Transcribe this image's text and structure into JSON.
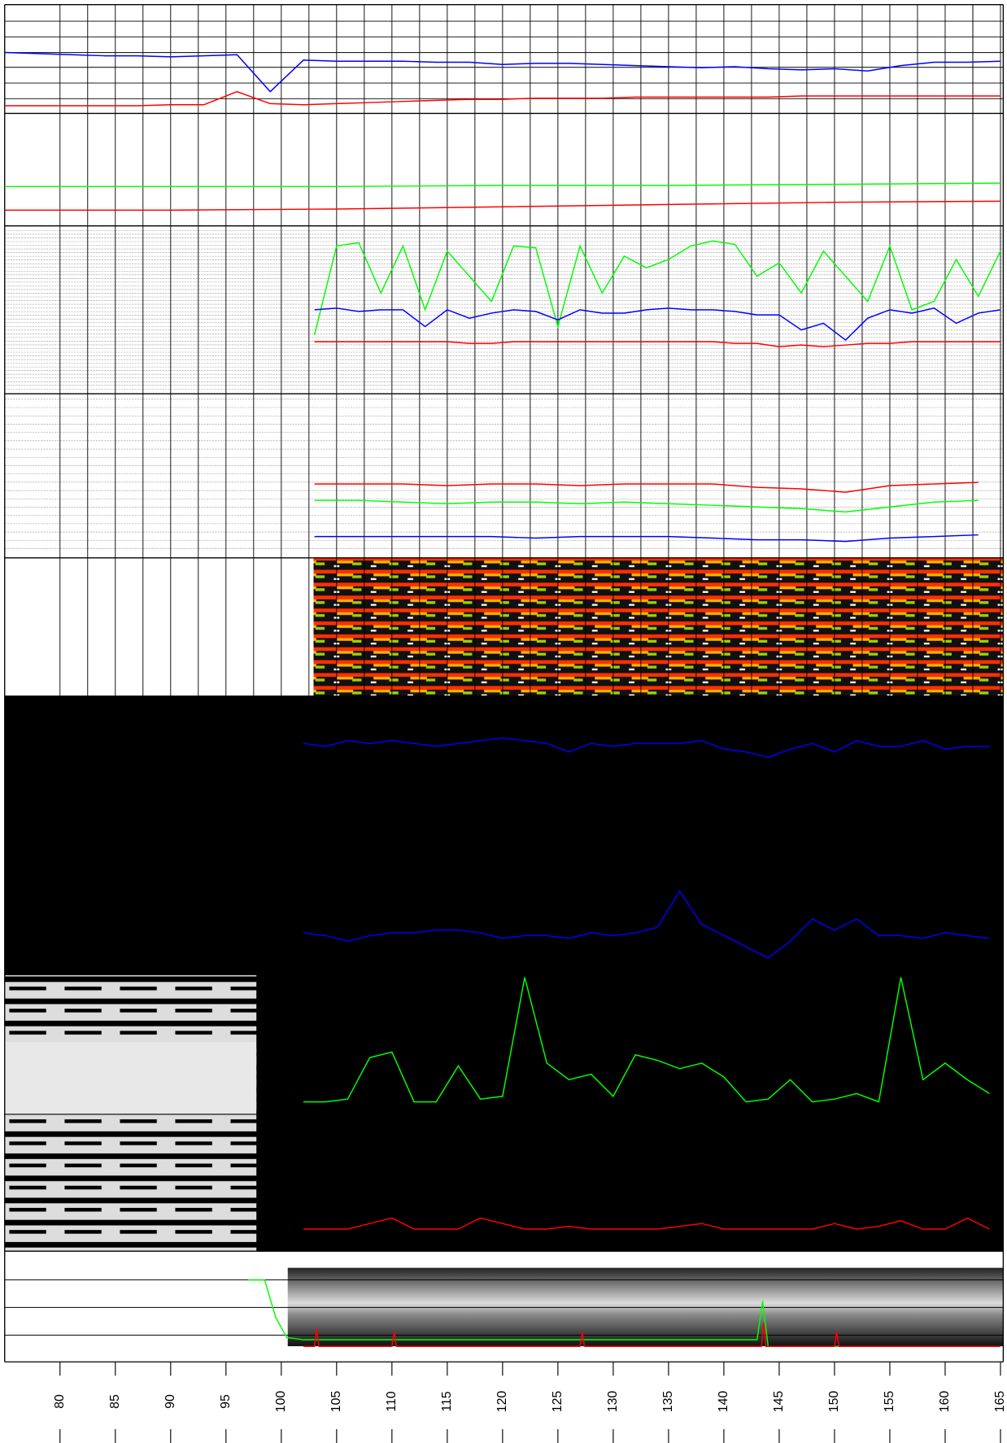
{
  "chart_data": {
    "type": "well-log",
    "xlim": [
      75,
      165.25
    ],
    "xticks": [
      80,
      85,
      90,
      95,
      100,
      105,
      110,
      115,
      120,
      125,
      130,
      135,
      140,
      145,
      150,
      155,
      160,
      165
    ],
    "grid": true,
    "tracks": [
      {
        "ylim": [
          0,
          100
        ],
        "x": [
          75,
          78,
          81,
          84,
          87,
          90,
          93,
          96,
          99,
          102,
          105,
          108,
          111,
          114,
          117,
          120,
          123,
          126,
          129,
          132,
          135,
          138,
          141,
          144,
          147,
          150,
          153,
          156,
          159,
          162,
          165
        ],
        "series": [
          {
            "color": "#0000ff",
            "values": [
              56,
              55,
              54,
              53,
              53,
              52,
              53,
              54,
              20,
              49,
              48,
              48,
              48,
              47,
              47,
              45,
              46,
              46,
              45,
              44,
              43,
              42,
              43,
              41,
              40,
              41,
              39,
              44,
              47,
              47,
              48
            ]
          },
          {
            "color": "#ff0000",
            "values": [
              7,
              7,
              7,
              7,
              7,
              8,
              8,
              20,
              9,
              8,
              9,
              10,
              11,
              12,
              13,
              13,
              14,
              14,
              14,
              15,
              15,
              15,
              15,
              15,
              16,
              16,
              16,
              16,
              16,
              16,
              16
            ]
          }
        ]
      },
      {
        "ylim": [
          0,
          100
        ],
        "x": [
          75,
          90,
          105,
          120,
          135,
          150,
          165
        ],
        "series": [
          {
            "color": "#00ff00",
            "values": [
              35,
              35,
              35,
              36,
              36,
              37,
              38
            ]
          },
          {
            "color": "#ff0000",
            "values": [
              14,
              14,
              15,
              17,
              19,
              21,
              22
            ]
          }
        ]
      },
      {
        "ylim": [
          0,
          100
        ],
        "x": [
          103,
          105,
          107,
          109,
          111,
          113,
          115,
          117,
          119,
          121,
          123,
          125,
          127,
          129,
          131,
          133,
          135,
          137,
          139,
          141,
          143,
          145,
          147,
          149,
          151,
          153,
          155,
          157,
          159,
          161,
          163,
          165
        ],
        "series": [
          {
            "color": "#00ff00",
            "values": [
              35,
              88,
              90,
              60,
              88,
              50,
              85,
              70,
              55,
              88,
              87,
              40,
              88,
              60,
              82,
              75,
              80,
              88,
              91,
              89,
              70,
              78,
              60,
              85,
              70,
              55,
              88,
              50,
              55,
              80,
              58,
              85
            ]
          },
          {
            "color": "#0000ff",
            "values": [
              50,
              51,
              49,
              50,
              50,
              40,
              50,
              45,
              48,
              50,
              49,
              44,
              50,
              48,
              48,
              50,
              51,
              50,
              50,
              49,
              47,
              47,
              38,
              42,
              32,
              45,
              50,
              48,
              51,
              42,
              48,
              50
            ]
          },
          {
            "color": "#ff0000",
            "values": [
              31,
              31,
              31,
              31,
              31,
              31,
              31,
              30,
              30,
              31,
              31,
              31,
              31,
              31,
              31,
              31,
              31,
              31,
              31,
              30,
              30,
              28,
              29,
              28,
              29,
              30,
              30,
              31,
              31,
              31,
              31,
              31
            ]
          }
        ]
      },
      {
        "ylim": [
          0,
          100
        ],
        "x": [
          103,
          107,
          111,
          115,
          119,
          123,
          127,
          131,
          135,
          139,
          143,
          147,
          151,
          155,
          159,
          163
        ],
        "series": [
          {
            "color": "#ff0000",
            "values": [
              45,
              45,
              45,
              44,
              45,
              45,
              44,
              45,
              45,
              45,
              43,
              42,
              40,
              44,
              45,
              46
            ]
          },
          {
            "color": "#00ff00",
            "values": [
              35,
              35,
              34,
              33,
              34,
              34,
              33,
              34,
              33,
              32,
              31,
              30,
              28,
              31,
              34,
              35
            ]
          },
          {
            "color": "#0000ff",
            "values": [
              13,
              13,
              13,
              13,
              13,
              12,
              13,
              13,
              13,
              12,
              11,
              11,
              10,
              12,
              13,
              14
            ]
          }
        ]
      },
      {
        "ylim": [
          0,
          100
        ],
        "x": [
          102,
          104,
          106,
          108,
          110,
          112,
          114,
          116,
          118,
          120,
          122,
          124,
          126,
          128,
          130,
          132,
          134,
          136,
          138,
          140,
          142,
          144,
          146,
          148,
          150,
          152,
          154,
          156,
          158,
          160,
          162,
          164
        ],
        "series": [
          {
            "color": "#0000ff",
            "values": [
              83,
              82,
              84,
              83,
              84,
              83,
              82,
              83,
              84,
              85,
              84,
              83,
              80,
              83,
              82,
              83,
              83,
              83,
              84,
              81,
              80,
              78,
              81,
              83,
              80,
              84,
              82,
              82,
              84,
              81,
              82,
              82
            ]
          },
          {
            "color": "#0000ff",
            "values": [
              15,
              14,
              12,
              14,
              15,
              15,
              16,
              16,
              15,
              13,
              14,
              14,
              13,
              15,
              14,
              15,
              17,
              30,
              18,
              14,
              10,
              6,
              12,
              20,
              16,
              20,
              14,
              14,
              13,
              15,
              14,
              13
            ]
          }
        ]
      },
      {
        "ylim": [
          0,
          100
        ],
        "x": [
          102,
          104,
          106,
          108,
          110,
          112,
          114,
          116,
          118,
          120,
          122,
          124,
          126,
          128,
          130,
          132,
          134,
          136,
          138,
          140,
          142,
          144,
          146,
          148,
          150,
          152,
          154,
          156,
          158,
          160,
          162,
          164
        ],
        "series": [
          {
            "color": "#00ff00",
            "values": [
              54,
              54,
              55,
              70,
              72,
              54,
              54,
              67,
              55,
              56,
              99,
              68,
              62,
              64,
              56,
              71,
              69,
              66,
              68,
              63,
              54,
              55,
              62,
              54,
              55,
              57,
              54,
              99,
              62,
              68,
              62,
              57
            ]
          },
          {
            "color": "#ff0000",
            "values": [
              8,
              8,
              8,
              10,
              12,
              8,
              8,
              8,
              12,
              10,
              8,
              8,
              9,
              8,
              8,
              8,
              8,
              9,
              10,
              8,
              8,
              8,
              8,
              8,
              10,
              8,
              9,
              11,
              8,
              8,
              12,
              8
            ]
          }
        ]
      },
      {
        "ylim": [
          0,
          100
        ],
        "series": [
          {
            "color": "#00ff00",
            "x": [
              97,
              98.5,
              99.5,
              100.5,
              102,
              143,
              143.5,
              144,
              165
            ],
            "values": [
              74,
              74,
              40,
              22,
              20,
              20,
              55,
              14,
              14
            ]
          },
          {
            "color": "#ff0000",
            "x": [
              102,
              103,
              103.2,
              103.4,
              110,
              110.2,
              110.4,
              127,
              127.2,
              127.4,
              143.4,
              143.6,
              143.8,
              150,
              150.2,
              150.4,
              165
            ],
            "values": [
              14,
              14,
              30,
              14,
              14,
              27,
              14,
              14,
              27,
              14,
              14,
              35,
              14,
              14,
              27,
              14,
              14
            ]
          }
        ]
      }
    ]
  }
}
